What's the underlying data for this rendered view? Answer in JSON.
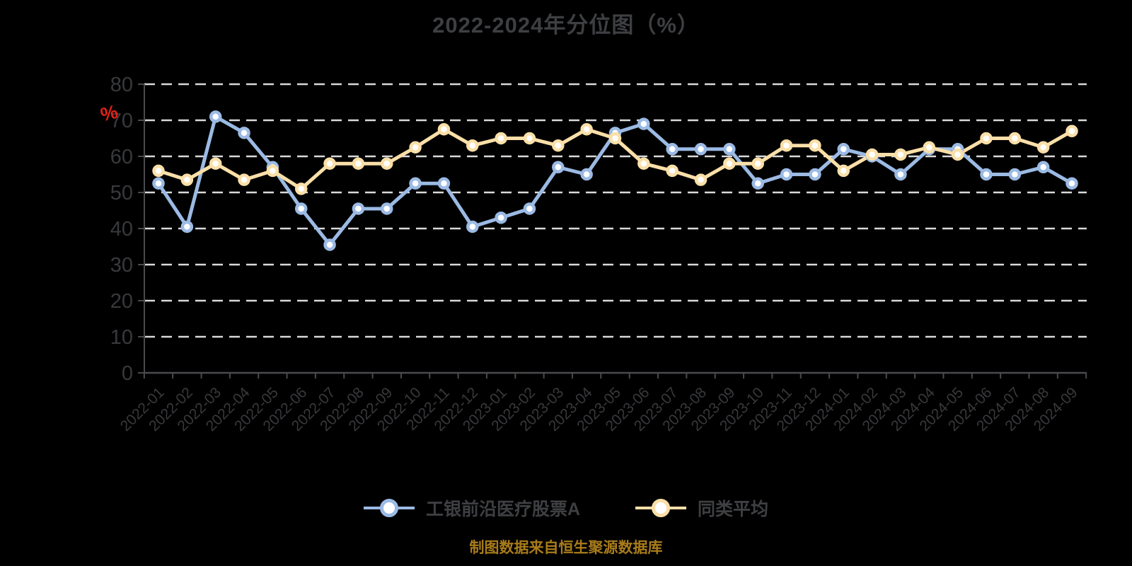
{
  "title": "2022-2024年分位图（%）",
  "source_note": "制图数据来自恒生聚源数据库",
  "y_axis": {
    "unit_label": "%",
    "tick_labels": [
      "0",
      "10",
      "20",
      "30",
      "40",
      "50",
      "60",
      "70",
      "80"
    ]
  },
  "legend": {
    "items": [
      {
        "label": "工银前沿医疗股票A",
        "color": "#9bbae4"
      },
      {
        "label": "同类平均",
        "color": "#fadfa8"
      }
    ],
    "position": "bottom"
  },
  "colors": {
    "background": "#000000",
    "title_text": "#3e3f42",
    "tick_label": "#38393c",
    "axis_line": "#4a4a4e",
    "grid_line": "#d9d9d9",
    "marker_fill": "#ffffff",
    "unit_percent_red": "#e02317",
    "source_text": "#a97c1b",
    "fund_series": "#9bbae4",
    "average_series": "#fadfa8"
  },
  "chart_data": {
    "type": "line",
    "title": "2022-2024年分位图（%）",
    "xlabel": "",
    "ylabel": "%",
    "ylim": [
      0,
      80
    ],
    "ytick_step": 10,
    "grid": "horizontal-dashed",
    "x_label_rotation": 45,
    "legend_position": "bottom",
    "categories": [
      "2022-01",
      "2022-02",
      "2022-03",
      "2022-04",
      "2022-05",
      "2022-06",
      "2022-07",
      "2022-08",
      "2022-09",
      "2022-10",
      "2022-11",
      "2022-12",
      "2023-01",
      "2023-02",
      "2023-03",
      "2023-04",
      "2023-05",
      "2023-06",
      "2023-07",
      "2023-08",
      "2023-09",
      "2023-10",
      "2023-11",
      "2023-12",
      "2024-01",
      "2024-02",
      "2024-03",
      "2024-04",
      "2024-05",
      "2024-06",
      "2024-07",
      "2024-08",
      "2024-09"
    ],
    "series": [
      {
        "name": "工银前沿医疗股票A",
        "color": "#9bbae4",
        "values": [
          52.5,
          40.5,
          71,
          66.5,
          57,
          45.5,
          35.5,
          45.5,
          45.5,
          52.5,
          52.5,
          40.5,
          43,
          45.5,
          57,
          55,
          66.5,
          69,
          62,
          62,
          62,
          52.5,
          55,
          55,
          62,
          60,
          55,
          62,
          62,
          55,
          55,
          57,
          52.5
        ]
      },
      {
        "name": "同类平均",
        "color": "#fadfa8",
        "values": [
          56,
          53.5,
          58,
          53.5,
          56,
          51,
          58,
          58,
          58,
          62.5,
          67.5,
          63,
          65,
          65,
          63,
          67.5,
          65,
          58,
          56,
          53.5,
          58,
          58,
          63,
          63,
          56,
          60.5,
          60.5,
          62.5,
          60.5,
          65,
          65,
          62.5,
          67
        ]
      }
    ]
  }
}
